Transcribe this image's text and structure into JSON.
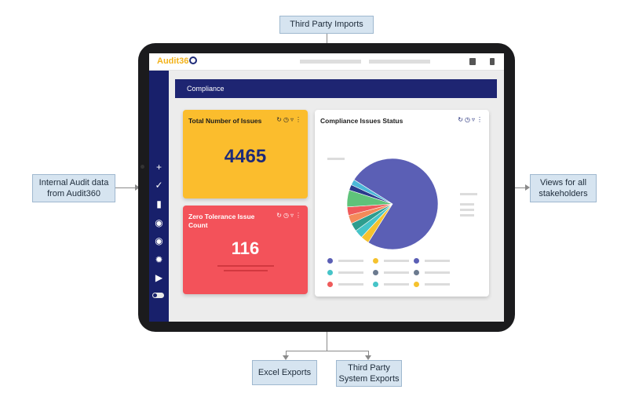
{
  "callouts": {
    "third_party_imports": "Third Party Imports",
    "internal_audit_line1": "Internal Audit data",
    "internal_audit_line2": "from Audit360",
    "views_line1": "Views for all",
    "views_line2": "stakeholders",
    "excel_exports": "Excel Exports",
    "third_party_system_exports_line1": "Third Party",
    "third_party_system_exports_line2": "System Exports"
  },
  "app": {
    "logo_text": "Audit36",
    "page_header": "Compliance"
  },
  "cards": {
    "total_issues": {
      "title": "Total Number of Issues",
      "value": "4465",
      "icons": [
        "refresh-icon",
        "clock-icon",
        "filter-icon",
        "more-icon"
      ]
    },
    "zero_tolerance": {
      "title": "Zero Tolerance Issue Count",
      "value": "116",
      "icons": [
        "refresh-icon",
        "clock-icon",
        "filter-icon",
        "more-icon"
      ]
    },
    "compliance_status": {
      "title": "Compliance Issues Status",
      "icons": [
        "refresh-icon",
        "clock-icon",
        "filter-icon",
        "more-icon"
      ]
    }
  },
  "colors": {
    "navy": "#1e2572",
    "yellow": "#fbbd2d",
    "red": "#f3525a",
    "pie": [
      "#5b5fb5",
      "#f5c22e",
      "#46c4c8",
      "#2e9d8e",
      "#f48a5a",
      "#ef5b5b",
      "#5fc37a",
      "#2a3a8c",
      "#4cb8d8"
    ]
  },
  "chart_data": {
    "type": "pie",
    "values": [
      75,
      3,
      3,
      3,
      3,
      3,
      6,
      2,
      2
    ]
  },
  "legend_dots": [
    "#5b5fb5",
    "#f5c22e",
    "#5b5fb5",
    "#46c4c8",
    "#6b7a8f",
    "#6b7a8f",
    "#ef5b5b",
    "#46c4c8",
    "#f5c22e"
  ],
  "sidebar_icons": [
    "plus-icon",
    "check-circle-icon",
    "document-icon",
    "globe-icon",
    "globe-alt-icon",
    "settings-icon",
    "play-icon",
    "toggle-icon"
  ]
}
